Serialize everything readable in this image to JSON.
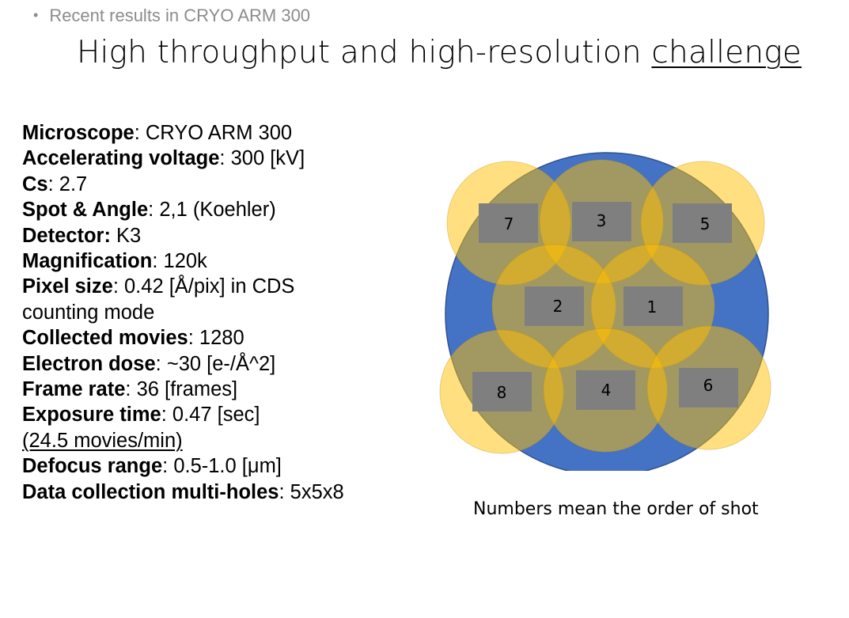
{
  "bullet": "Recent results in CRYO ARM 300",
  "title": {
    "main": "High throughput and high-resolution ",
    "emphasis": "challenge"
  },
  "specs": [
    {
      "label": "Microscope",
      "sep": ": ",
      "value": "CRYO ARM 300"
    },
    {
      "label": "Accelerating voltage",
      "sep": ": ",
      "value": "300 [kV]"
    },
    {
      "label": "Cs",
      "sep": ": ",
      "value": "2.7"
    },
    {
      "label": "Spot & Angle",
      "sep": ": ",
      "value": "2,1 (Koehler)"
    },
    {
      "label": "Detector:",
      "sep": " ",
      "value": "K3"
    },
    {
      "label": "Magnification",
      "sep": ": ",
      "value": "120k"
    },
    {
      "label": "Pixel size",
      "sep": ": ",
      "value": "0.42 [Å/pix] in CDS",
      "cont": "counting mode"
    },
    {
      "label": "Collected movies",
      "sep": ": ",
      "value": "1280"
    },
    {
      "label": "Electron dose",
      "sep": ": ",
      "value": "~30 [e-/Å^2]"
    },
    {
      "label": "Frame rate",
      "sep": ": ",
      "value": "36 [frames]"
    },
    {
      "label": "Exposure time",
      "sep": ": ",
      "value": "0.47 [sec]",
      "sub": "(24.5 movies/min)"
    },
    {
      "label": "Defocus range",
      "sep": ": ",
      "value": "0.5-1.0 [μm]"
    },
    {
      "label": "Data collection multi-holes",
      "sep": ": ",
      "value": "5x5x8"
    }
  ],
  "diagram": {
    "colors": {
      "big_circle": "#4472c4",
      "hole_fill": "#ffc000",
      "hole_fill_opacity": 0.5,
      "shot_box": "#7f7f7f"
    },
    "shots": [
      "7",
      "3",
      "5",
      "2",
      "1",
      "8",
      "4",
      "6"
    ]
  },
  "caption": "Numbers mean the order of shot"
}
